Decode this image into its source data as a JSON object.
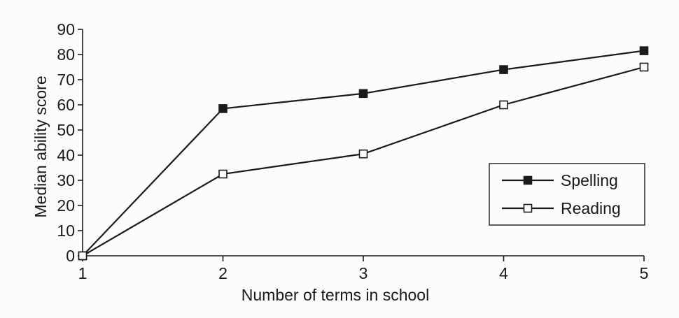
{
  "chart_data": {
    "type": "line",
    "title": "",
    "xlabel": "Number of terms in school",
    "ylabel": "Median ability score",
    "x": [
      1,
      2,
      3,
      4,
      5
    ],
    "xticks": [
      "1",
      "2",
      "3",
      "4",
      "5"
    ],
    "yticks": [
      "0",
      "10",
      "20",
      "30",
      "40",
      "50",
      "60",
      "70",
      "80",
      "90"
    ],
    "xlim": [
      1,
      5
    ],
    "ylim": [
      0,
      90
    ],
    "grid": false,
    "legend_position": "right",
    "series": [
      {
        "name": "Spelling",
        "marker": "filled-square",
        "color": "#1a1a1a",
        "values": [
          0,
          58.5,
          64.5,
          74,
          81.5
        ]
      },
      {
        "name": "Reading",
        "marker": "open-square",
        "color": "#1a1a1a",
        "values": [
          0,
          32.5,
          40.5,
          60,
          75
        ]
      }
    ]
  }
}
